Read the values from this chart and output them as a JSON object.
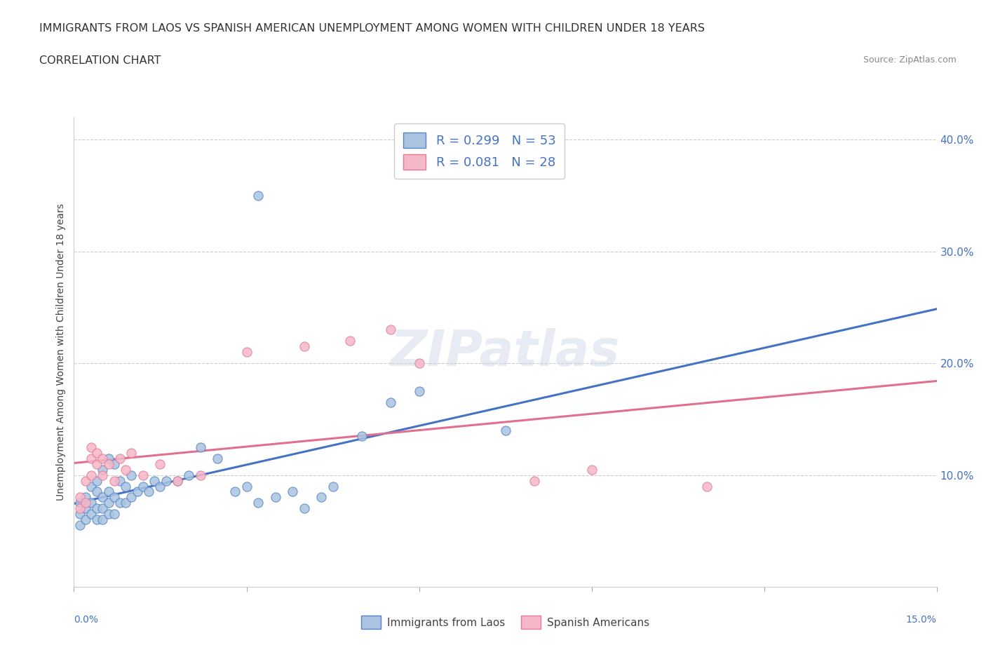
{
  "title_line1": "IMMIGRANTS FROM LAOS VS SPANISH AMERICAN UNEMPLOYMENT AMONG WOMEN WITH CHILDREN UNDER 18 YEARS",
  "title_line2": "CORRELATION CHART",
  "source": "Source: ZipAtlas.com",
  "ylabel": "Unemployment Among Women with Children Under 18 years",
  "xlim": [
    0.0,
    0.15
  ],
  "ylim": [
    0.0,
    0.42
  ],
  "ytick_positions": [
    0.1,
    0.2,
    0.3,
    0.4
  ],
  "color_laos_fill": "#aac4e0",
  "color_laos_edge": "#5585c5",
  "color_spanish_fill": "#f5b8c8",
  "color_spanish_edge": "#e8789a",
  "color_line_laos": "#4472c4",
  "color_line_spanish": "#e07090",
  "background_color": "#ffffff",
  "laos_x": [
    0.001,
    0.001,
    0.001,
    0.002,
    0.002,
    0.002,
    0.003,
    0.003,
    0.003,
    0.004,
    0.004,
    0.004,
    0.004,
    0.005,
    0.005,
    0.005,
    0.005,
    0.006,
    0.006,
    0.006,
    0.006,
    0.007,
    0.007,
    0.007,
    0.008,
    0.008,
    0.009,
    0.009,
    0.01,
    0.01,
    0.011,
    0.012,
    0.013,
    0.014,
    0.015,
    0.016,
    0.018,
    0.02,
    0.022,
    0.025,
    0.028,
    0.03,
    0.032,
    0.035,
    0.038,
    0.04,
    0.043,
    0.045,
    0.05,
    0.055,
    0.06,
    0.075,
    0.032
  ],
  "laos_y": [
    0.055,
    0.065,
    0.075,
    0.06,
    0.07,
    0.08,
    0.065,
    0.075,
    0.09,
    0.06,
    0.07,
    0.085,
    0.095,
    0.06,
    0.07,
    0.08,
    0.105,
    0.065,
    0.075,
    0.085,
    0.115,
    0.065,
    0.08,
    0.11,
    0.075,
    0.095,
    0.075,
    0.09,
    0.08,
    0.1,
    0.085,
    0.09,
    0.085,
    0.095,
    0.09,
    0.095,
    0.095,
    0.1,
    0.125,
    0.115,
    0.085,
    0.09,
    0.075,
    0.08,
    0.085,
    0.07,
    0.08,
    0.09,
    0.135,
    0.165,
    0.175,
    0.14,
    0.35
  ],
  "spanish_x": [
    0.001,
    0.001,
    0.002,
    0.002,
    0.003,
    0.003,
    0.003,
    0.004,
    0.004,
    0.005,
    0.005,
    0.006,
    0.007,
    0.008,
    0.009,
    0.01,
    0.012,
    0.015,
    0.018,
    0.022,
    0.03,
    0.04,
    0.048,
    0.055,
    0.06,
    0.08,
    0.09,
    0.11
  ],
  "spanish_y": [
    0.07,
    0.08,
    0.075,
    0.095,
    0.1,
    0.115,
    0.125,
    0.11,
    0.12,
    0.1,
    0.115,
    0.11,
    0.095,
    0.115,
    0.105,
    0.12,
    0.1,
    0.11,
    0.095,
    0.1,
    0.21,
    0.215,
    0.22,
    0.23,
    0.2,
    0.095,
    0.105,
    0.09
  ]
}
